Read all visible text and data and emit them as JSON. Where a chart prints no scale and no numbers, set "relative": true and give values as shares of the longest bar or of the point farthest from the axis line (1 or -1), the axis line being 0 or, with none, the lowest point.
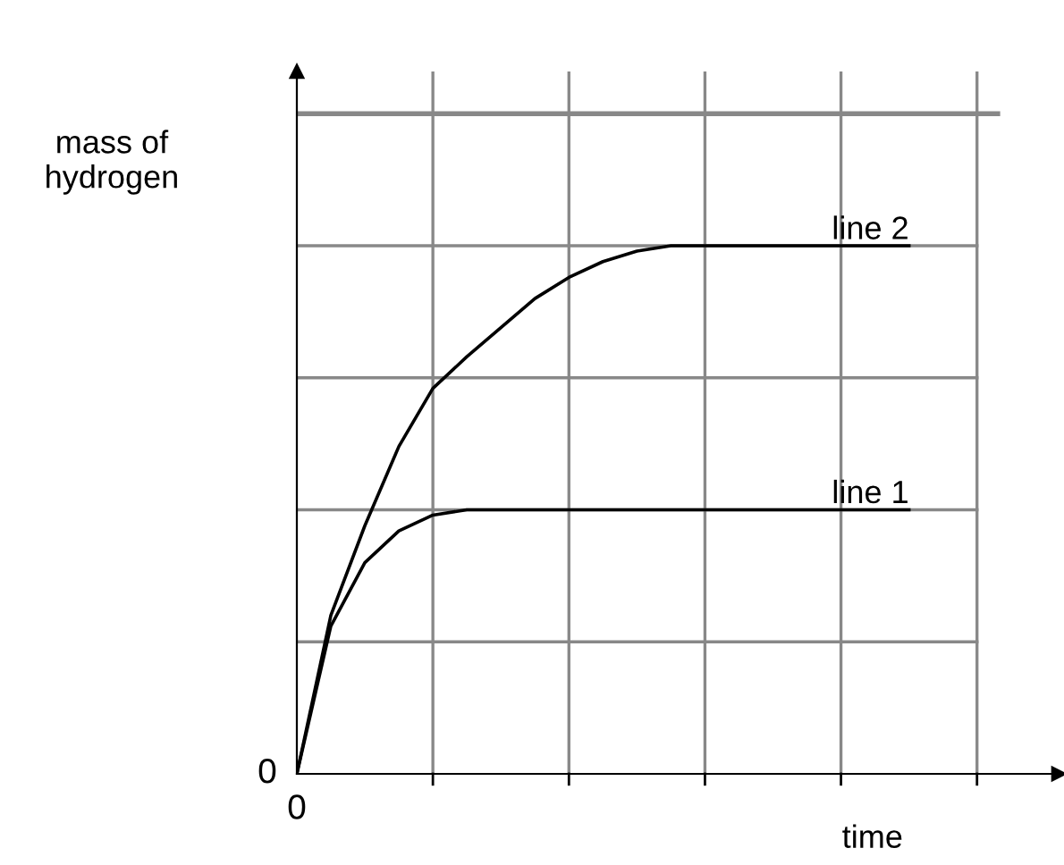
{
  "chart_data": {
    "type": "line",
    "relative": true,
    "xlabel": "time",
    "ylabel": "mass of\nhydrogen",
    "annotations": [
      "0",
      "0"
    ],
    "categories": [
      null,
      null,
      null,
      null,
      null,
      null,
      null,
      null,
      null,
      null,
      null,
      null,
      null,
      null,
      null,
      null,
      null,
      null,
      null
    ],
    "series": [
      {
        "name": "line 1",
        "color": "#000000",
        "values": [
          0,
          0.28,
          0.4,
          0.46,
          0.49,
          0.5,
          0.5,
          0.5,
          0.5,
          0.5,
          0.5,
          0.5,
          0.5,
          0.5,
          0.5,
          0.5,
          0.5,
          0.5,
          0.5
        ]
      },
      {
        "name": "line 2",
        "color": "#000000",
        "values": [
          0,
          0.3,
          0.47,
          0.62,
          0.73,
          0.79,
          0.845,
          0.9,
          0.94,
          0.97,
          0.99,
          1,
          1,
          1,
          1,
          1,
          1,
          1,
          1
        ]
      }
    ],
    "grid": true,
    "legend": false,
    "marker": "none",
    "line_style": "solid"
  }
}
